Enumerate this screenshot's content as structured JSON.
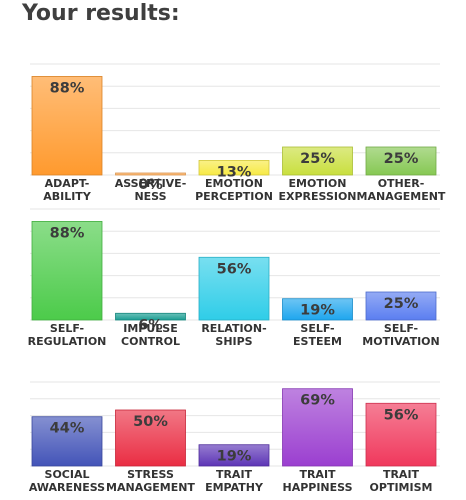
{
  "page": {
    "title": "Your results:"
  },
  "chart_data": [
    {
      "type": "bar",
      "categories": [
        [
          "ADAPT-",
          "ABILITY"
        ],
        [
          "ASSERTIVE-",
          "NESS"
        ],
        [
          "EMOTION",
          "PERCEPTION"
        ],
        [
          "EMOTION",
          "EXPRESSION"
        ],
        [
          "OTHER-",
          "MANAGEMENT"
        ]
      ],
      "values": [
        88,
        0,
        13,
        25,
        25
      ],
      "value_labels": [
        "88%",
        "0%",
        "13%",
        "25%",
        "25%"
      ],
      "colors": [
        "#ff9a2e",
        "#ffb060",
        "#f7ea46",
        "#c9df3e",
        "#86c853"
      ],
      "ylim": [
        0,
        100
      ],
      "grid": true
    },
    {
      "type": "bar",
      "categories": [
        [
          "SELF-",
          "REGULATION"
        ],
        [
          "IMPULSE",
          "CONTROL"
        ],
        [
          "RELATION-",
          "SHIPS"
        ],
        [
          "SELF-",
          "ESTEEM"
        ],
        [
          "SELF-",
          "MOTIVATION"
        ]
      ],
      "values": [
        88,
        6,
        56,
        19,
        25
      ],
      "value_labels": [
        "88%",
        "6%",
        "56%",
        "19%",
        "25%"
      ],
      "colors": [
        "#4ccb4a",
        "#1b9e93",
        "#2fcde8",
        "#1ea6ee",
        "#5b7ef0"
      ],
      "ylim": [
        0,
        100
      ],
      "grid": true
    },
    {
      "type": "bar",
      "categories": [
        [
          "SOCIAL",
          "AWARENESS"
        ],
        [
          "STRESS",
          "MANAGEMENT"
        ],
        [
          "TRAIT",
          "EMPATHY"
        ],
        [
          "TRAIT",
          "HAPPINESS"
        ],
        [
          "TRAIT",
          "OPTIMISM"
        ]
      ],
      "values": [
        44,
        50,
        19,
        69,
        56
      ],
      "value_labels": [
        "44%",
        "50%",
        "19%",
        "69%",
        "56%"
      ],
      "colors": [
        "#4354b8",
        "#ea2d43",
        "#5d35b6",
        "#9b3fd0",
        "#f0385c"
      ],
      "ylim": [
        0,
        100
      ],
      "grid": true
    }
  ]
}
